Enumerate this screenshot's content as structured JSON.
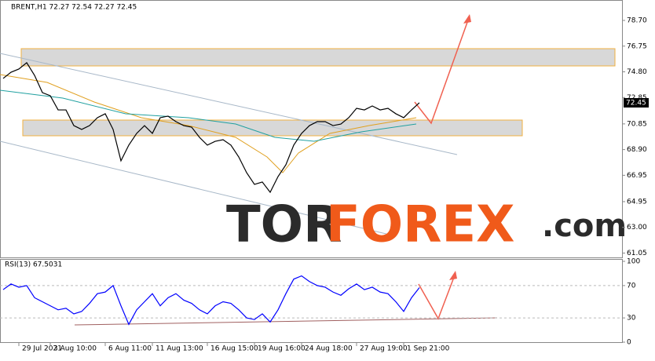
{
  "chart_data": [
    {
      "type": "line",
      "title": "BRENT,H1  72.27 72.54 72.27 72.45",
      "color": "#000000",
      "categories": [
        null,
        null,
        "29 Jul 2021",
        null,
        null,
        null,
        "3 Aug 10:00",
        null,
        null,
        null,
        null,
        null,
        null,
        "6 Aug 11:00",
        null,
        null,
        null,
        null,
        null,
        "11 Aug 13:00",
        null,
        null,
        null,
        null,
        null,
        null,
        "16 Aug 15:00",
        null,
        null,
        null,
        null,
        null,
        "19 Aug 16:00",
        null,
        null,
        null,
        null,
        null,
        "24 Aug 18:00",
        null,
        null,
        null,
        null,
        null,
        null,
        "27 Aug 19:00",
        null,
        null,
        null,
        null,
        null,
        "1 Sep 21:00",
        null,
        null
      ],
      "values": [
        74.3,
        74.77,
        75.01,
        75.49,
        74.53,
        73.22,
        72.99,
        71.91,
        71.91,
        70.72,
        70.43,
        70.72,
        71.32,
        71.62,
        70.43,
        68.05,
        69.24,
        70.13,
        70.72,
        70.13,
        71.32,
        71.44,
        71.02,
        70.72,
        70.6,
        69.83,
        69.24,
        69.53,
        69.65,
        69.24,
        68.34,
        67.15,
        66.26,
        66.44,
        65.66,
        66.85,
        67.75,
        69.24,
        70.13,
        70.72,
        71.02,
        71.02,
        70.72,
        70.84,
        71.32,
        72.03,
        71.91,
        72.21,
        71.91,
        72.03,
        71.62,
        71.32,
        71.91,
        72.45
      ],
      "current_price": 72.45,
      "ylim": [
        60.72,
        80.13
      ],
      "yticks": [
        61.05,
        {
          "value": 63,
          "label": "63.00"
        },
        64.95,
        66.95,
        {
          "value": 68.9,
          "label": "68.90"
        },
        70.85,
        72.85,
        {
          "value": 74.8,
          "label": "74.80"
        },
        76.75,
        {
          "value": 78.7,
          "label": "78.70"
        }
      ],
      "watermark": [
        "TOR",
        "FOREX",
        ".com"
      ]
    },
    {
      "type": "line",
      "title": "RSI(13) 67.5031",
      "color": "#0000ff",
      "values": [
        65,
        72,
        68,
        70,
        55,
        50,
        45,
        40,
        42,
        35,
        38,
        48,
        60,
        62,
        70,
        45,
        22,
        40,
        50,
        60,
        45,
        55,
        60,
        52,
        48,
        40,
        35,
        45,
        50,
        48,
        40,
        30,
        28,
        35,
        25,
        40,
        60,
        78,
        82,
        75,
        70,
        68,
        62,
        58,
        66,
        72,
        65,
        68,
        62,
        60,
        50,
        38,
        55,
        67.5031
      ],
      "ylim": [
        0,
        100
      ],
      "yticks": [
        0,
        30,
        70,
        100
      ]
    }
  ]
}
